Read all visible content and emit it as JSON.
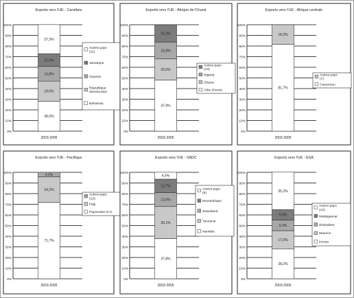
{
  "chart_data": [
    {
      "type": "bar",
      "title": "Exports vers l'UE - Caraïbes",
      "categories": [
        "2003-2005"
      ],
      "yaxis": {
        "ylim": [
          0,
          100
        ],
        "ticks": [
          "0%",
          "10%",
          "20%",
          "30%",
          "40%",
          "50%",
          "60%",
          "70%",
          "80%",
          "90%",
          "100%"
        ]
      },
      "grid": true,
      "legend_position": "right",
      "series": [
        {
          "name": "Bahamas",
          "values": [
            28.0
          ],
          "label": "28,0%",
          "color": "#ffffff"
        },
        {
          "name": "République dominicaine",
          "values": [
            19.0
          ],
          "label": "19,0%",
          "color": "#c8c8c8"
        },
        {
          "name": "Guyana",
          "values": [
            13.8
          ],
          "label": "13,8%",
          "color": "#a8a8a8"
        },
        {
          "name": "Jamaïque",
          "values": [
            12.0
          ],
          "label": "12,0%",
          "color": "#7c7c7c"
        },
        {
          "name": "Autres pays (11)",
          "values": [
            27.3
          ],
          "label": "27,3%",
          "color": "#ffffff"
        }
      ]
    },
    {
      "type": "bar",
      "title": "Exports vers l'UE - Afrique de l'Ouest",
      "categories": [
        "2003-2005"
      ],
      "yaxis": {
        "ylim": [
          0,
          100
        ],
        "ticks": [
          "0%",
          "10%",
          "20%",
          "30%",
          "40%",
          "50%",
          "60%",
          "70%",
          "80%",
          "90%",
          "100%"
        ]
      },
      "grid": true,
      "legend_position": "right",
      "series": [
        {
          "name": "Côte d'Ivoire",
          "values": [
            47.9
          ],
          "label": "47,9%",
          "color": "#ffffff"
        },
        {
          "name": "Ghana",
          "values": [
            20.0
          ],
          "label": "20,0%",
          "color": "#c8c8c8"
        },
        {
          "name": "Nigéria",
          "values": [
            15.8
          ],
          "label": "15,8%",
          "color": "#a8a8a8"
        },
        {
          "name": "Autres pays (13)",
          "values": [
            16.3
          ],
          "label": "16,3%",
          "color": "#7c7c7c"
        }
      ]
    },
    {
      "type": "bar",
      "title": "Exports vers l'UE - Afrique centrale",
      "categories": [
        "2003-2005"
      ],
      "yaxis": {
        "ylim": [
          0,
          100
        ],
        "ticks": [
          "0%",
          "10%",
          "20%",
          "30%",
          "40%",
          "50%",
          "60%",
          "70%",
          "80%",
          "90%",
          "100%"
        ]
      },
      "grid": true,
      "legend_position": "right",
      "series": [
        {
          "name": "Cameroun",
          "values": [
            81.7
          ],
          "label": "81,7%",
          "color": "#ffffff"
        },
        {
          "name": "Autres pays (7)",
          "values": [
            18.3
          ],
          "label": "18,3%",
          "color": "#c8c8c8"
        }
      ]
    },
    {
      "type": "bar",
      "title": "Exports vers l'UE - Pacifique",
      "categories": [
        "2003-2005"
      ],
      "yaxis": {
        "ylim": [
          0,
          100
        ],
        "ticks": [
          "0%",
          "10%",
          "20%",
          "30%",
          "40%",
          "50%",
          "60%",
          "70%",
          "80%",
          "90%",
          "100%"
        ]
      },
      "grid": true,
      "legend_position": "right",
      "series": [
        {
          "name": "Papouasie N.G.",
          "values": [
            71.7
          ],
          "label": "71,7%",
          "color": "#ffffff"
        },
        {
          "name": "Fidji",
          "values": [
            24.2
          ],
          "label": "24,2%",
          "color": "#c8c8c8"
        },
        {
          "name": "Autres pays (12)",
          "values": [
            4.2
          ],
          "label": "4,2%",
          "color": "#a8a8a8"
        }
      ]
    },
    {
      "type": "bar",
      "title": "Exports vers l'UE - SADC",
      "categories": [
        "2003-2005"
      ],
      "yaxis": {
        "ylim": [
          0,
          100
        ],
        "ticks": [
          "0%",
          "10%",
          "20%",
          "30%",
          "40%",
          "50%",
          "60%",
          "70%",
          "80%",
          "90%",
          "100%"
        ]
      },
      "grid": true,
      "legend_position": "right",
      "series": [
        {
          "name": "Namibie",
          "values": [
            37.8
          ],
          "label": "37,8%",
          "color": "#ffffff"
        },
        {
          "name": "Tanzanie",
          "values": [
            30.1
          ],
          "label": "30,1%",
          "color": "#c8c8c8"
        },
        {
          "name": "Swaziland",
          "values": [
            13.0
          ],
          "label": "13,0%",
          "color": "#a8a8a8"
        },
        {
          "name": "Mozambique",
          "values": [
            12.7
          ],
          "label": "12,7%",
          "color": "#7c7c7c"
        },
        {
          "name": "Autres pays (6)",
          "values": [
            6.5
          ],
          "label": "6,5%",
          "color": "#ffffff"
        }
      ]
    },
    {
      "type": "bar",
      "title": "Exports vers l'UE - ESA",
      "categories": [
        "2003-2005"
      ],
      "yaxis": {
        "ylim": [
          0,
          100
        ],
        "ticks": [
          "0%",
          "10%",
          "20%",
          "30%",
          "40%",
          "50%",
          "60%",
          "70%",
          "80%",
          "90%",
          "100%"
        ]
      },
      "grid": true,
      "legend_position": "right",
      "series": [
        {
          "name": "Kenya",
          "values": [
            28.2
          ],
          "label": "28,2%",
          "color": "#ffffff"
        },
        {
          "name": "Maurice",
          "values": [
            17.0
          ],
          "label": "17,0%",
          "color": "#c8c8c8"
        },
        {
          "name": "Zimbabwe",
          "values": [
            9.9
          ],
          "label": "9,9%",
          "color": "#a8a8a8"
        },
        {
          "name": "Madagascar",
          "values": [
            9.9
          ],
          "label": "9,9%",
          "color": "#7c7c7c"
        },
        {
          "name": "Autres pays (12)",
          "values": [
            35.2
          ],
          "label": "35,2%",
          "color": "#ffffff"
        }
      ]
    }
  ]
}
